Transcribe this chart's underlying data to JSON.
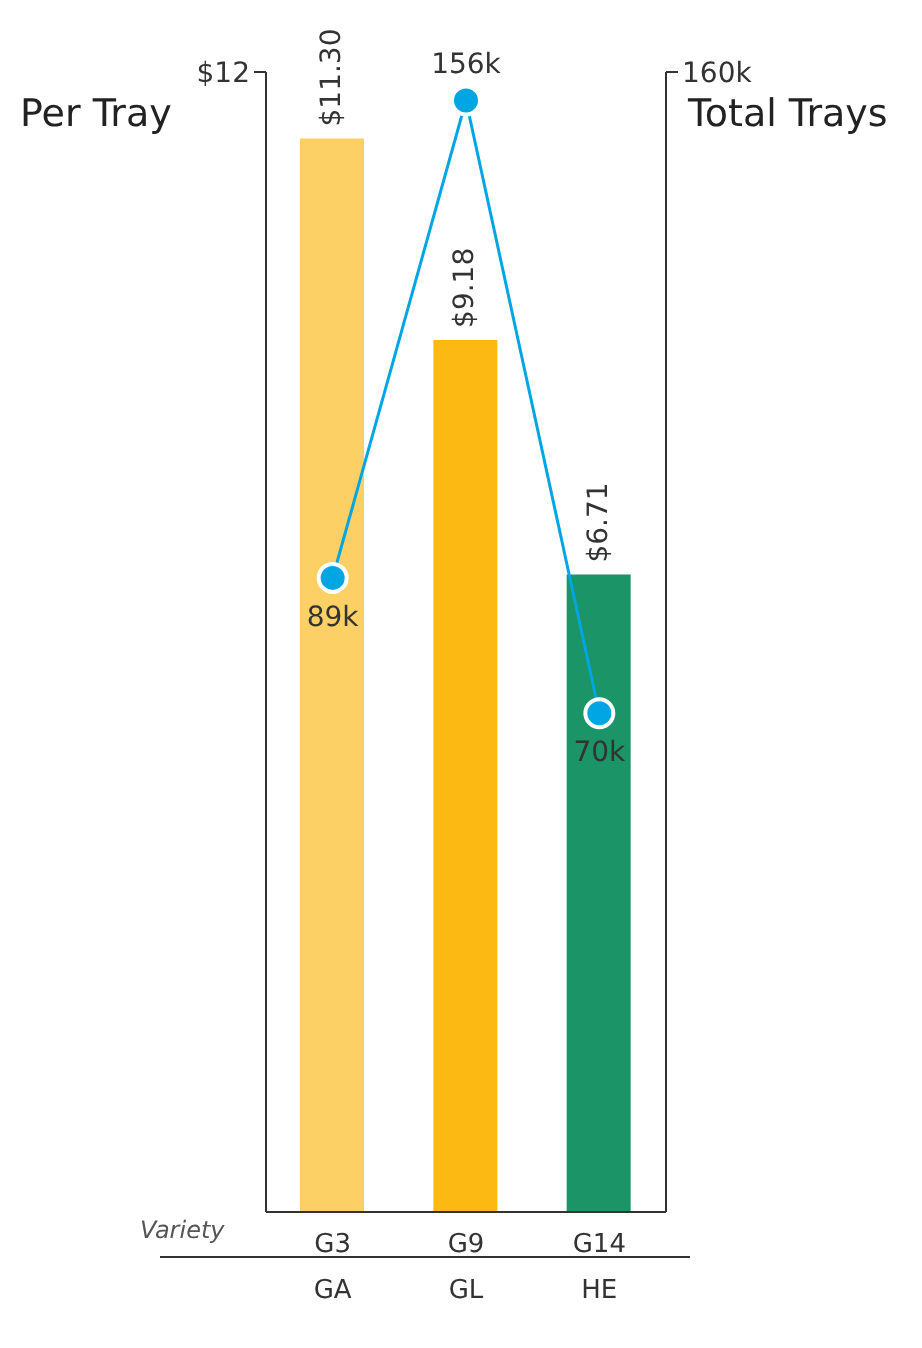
{
  "chart_data": {
    "type": "bar",
    "ylabel": "Per Tray",
    "y2label": "Total Trays",
    "xlabel": "Variety",
    "categories": [
      "G3\nGA",
      "G9\nGL",
      "G14\nHE"
    ],
    "series": [
      {
        "colors": [
          "#fdd065",
          "#fdb913",
          "#1b9467"
        ],
        "values": [
          11.3,
          9.18,
          6.71
        ],
        "value_labels": [
          "$11.30",
          "$9.18",
          "$6.71"
        ]
      },
      {
        "type": "line",
        "axis": "y2",
        "color": "#00a6e4",
        "values": [
          89000,
          156000,
          70000
        ],
        "value_labels": [
          "89k",
          "156k",
          "70k"
        ]
      }
    ],
    "ylim": [
      0,
      12
    ],
    "yticks": [
      {
        "value": 12,
        "label": "$12"
      }
    ],
    "y2lim": [
      0,
      160000
    ],
    "y2ticks": [
      {
        "value": 160000,
        "label": "160k"
      }
    ],
    "marker": "circle",
    "line_style": "solid",
    "grid": false,
    "legend": false
  }
}
